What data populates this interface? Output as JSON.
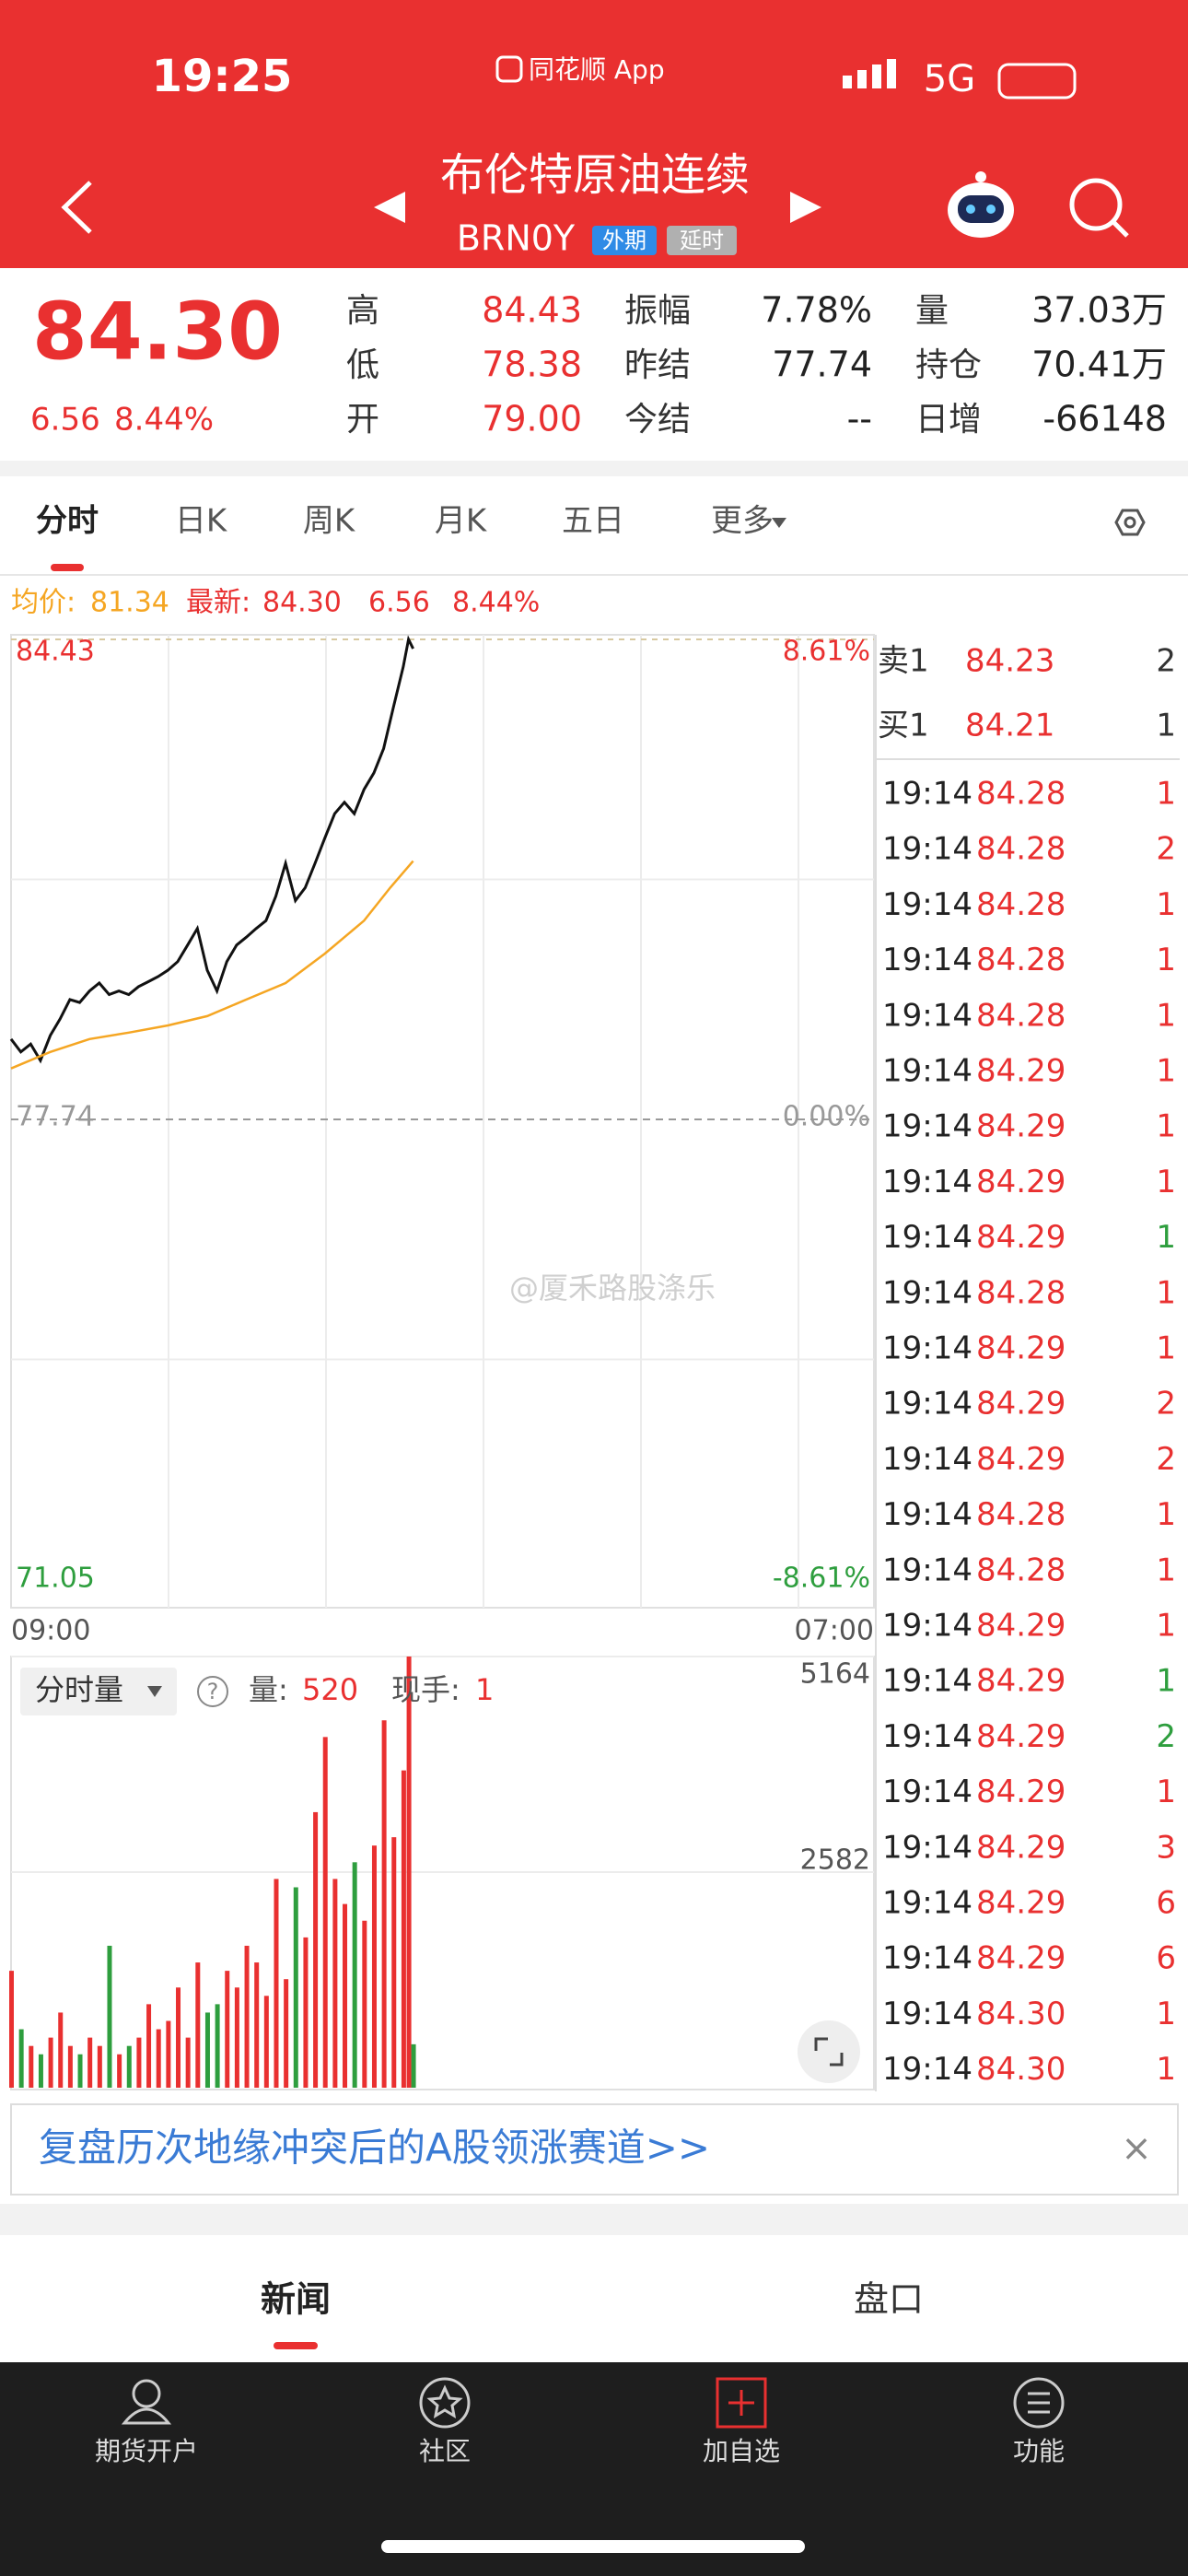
{
  "status_bar": {
    "time": "19:25",
    "app": "同花顺 App",
    "network": "5G"
  },
  "header": {
    "title": "布伦特原油连续",
    "code": "BRN0Y",
    "tags": [
      "外期",
      "延时"
    ]
  },
  "quote": {
    "price": "84.30",
    "change": "6.56",
    "change_pct": "8.44%",
    "stats": [
      {
        "label": "高",
        "value": "84.43"
      },
      {
        "label": "低",
        "value": "78.38"
      },
      {
        "label": "开",
        "value": "79.00"
      },
      {
        "label": "振幅",
        "value": "7.78%"
      },
      {
        "label": "昨结",
        "value": "77.74"
      },
      {
        "label": "今结",
        "value": "--"
      },
      {
        "label": "量",
        "value": "37.03万"
      },
      {
        "label": "持仓",
        "value": "70.41万"
      },
      {
        "label": "日增",
        "value": "-66148"
      }
    ]
  },
  "tabs": [
    "分时",
    "日K",
    "周K",
    "月K",
    "五日",
    "更多"
  ],
  "info_line": {
    "avg_label": "均价:",
    "avg": "81.34",
    "last_label": "最新:",
    "last": "84.30",
    "change": "6.56",
    "change_pct": "8.44%"
  },
  "chart_data": [
    {
      "type": "line",
      "x": [
        0,
        15,
        30,
        45,
        60,
        75,
        90,
        105,
        120,
        135,
        150,
        165,
        180,
        195,
        210,
        225,
        240,
        255,
        270,
        285,
        300,
        315,
        330,
        345,
        360,
        375,
        390,
        405,
        420,
        435,
        450,
        465,
        480,
        495,
        510,
        525,
        540,
        555,
        570,
        585,
        600,
        608,
        615
      ],
      "series": [
        {
          "color": "#111111",
          "values": [
            78.86,
            78.68,
            78.79,
            78.56,
            78.91,
            79.14,
            79.41,
            79.37,
            79.53,
            79.64,
            79.48,
            79.53,
            79.48,
            79.59,
            79.66,
            79.73,
            79.82,
            79.94,
            80.17,
            80.4,
            79.82,
            79.53,
            79.94,
            80.17,
            80.28,
            80.4,
            80.51,
            80.85,
            81.31,
            80.79,
            80.97,
            81.31,
            81.66,
            82.0,
            82.16,
            82.0,
            82.34,
            82.57,
            82.91,
            83.49,
            84.05,
            84.43,
            84.3
          ]
        },
        {
          "color": "#f5a623",
          "x": [
            0,
            60,
            120,
            180,
            240,
            300,
            360,
            420,
            480,
            540,
            580,
            615
          ],
          "values": [
            78.45,
            78.68,
            78.86,
            78.95,
            79.05,
            79.18,
            79.41,
            79.64,
            80.05,
            80.51,
            80.97,
            81.34
          ]
        }
      ],
      "xlim": [
        0,
        1320
      ],
      "xticks": [
        {
          "value": 0,
          "label": "09:00"
        },
        {
          "value": 1320,
          "label": "07:00"
        }
      ],
      "ylim": [
        71.05,
        84.43
      ],
      "yticks": [
        84.43,
        77.74,
        71.05
      ],
      "y2lim": [
        -8.61,
        8.61
      ],
      "y2ticks": [
        {
          "value": 8.61,
          "label": "8.61%"
        },
        {
          "value": 0,
          "label": "0.00%"
        },
        {
          "value": -8.61,
          "label": "-8.61%"
        }
      ],
      "watermark": "@厦禾路股涤乐"
    },
    {
      "type": "bar",
      "x": [
        0,
        15,
        30,
        45,
        60,
        75,
        90,
        105,
        120,
        135,
        150,
        165,
        180,
        195,
        210,
        225,
        240,
        255,
        270,
        285,
        300,
        315,
        330,
        345,
        360,
        375,
        390,
        405,
        420,
        435,
        450,
        465,
        480,
        495,
        510,
        525,
        540,
        555,
        570,
        585,
        600,
        608,
        615
      ],
      "values": [
        1400,
        700,
        500,
        400,
        600,
        900,
        500,
        400,
        600,
        500,
        1700,
        400,
        500,
        600,
        1000,
        700,
        800,
        1200,
        600,
        1500,
        900,
        1000,
        1400,
        1200,
        1700,
        1500,
        1100,
        2500,
        1300,
        2400,
        1800,
        3300,
        4200,
        2500,
        2200,
        2700,
        2000,
        2900,
        4400,
        3000,
        3800,
        5164,
        520
      ],
      "up_color": "#e93030",
      "down_color": "#2e9e3e",
      "xlim": [
        0,
        1320
      ],
      "ylim": [
        0,
        5164
      ],
      "yticks": [
        5164,
        2582
      ]
    }
  ],
  "volume_header": {
    "selector": "分时量",
    "help": "?",
    "vol_label": "量:",
    "vol": "520",
    "hand_label": "现手:",
    "hand": "1"
  },
  "order_book": [
    {
      "side": "卖1",
      "price": "84.23",
      "vol": "2"
    },
    {
      "side": "买1",
      "price": "84.21",
      "vol": "1"
    }
  ],
  "trades": [
    {
      "time": "19:14",
      "price": "84.28",
      "vol": "1",
      "color": "#e93030"
    },
    {
      "time": "19:14",
      "price": "84.28",
      "vol": "2",
      "color": "#e93030"
    },
    {
      "time": "19:14",
      "price": "84.28",
      "vol": "1",
      "color": "#e93030"
    },
    {
      "time": "19:14",
      "price": "84.28",
      "vol": "1",
      "color": "#e93030"
    },
    {
      "time": "19:14",
      "price": "84.28",
      "vol": "1",
      "color": "#e93030"
    },
    {
      "time": "19:14",
      "price": "84.29",
      "vol": "1",
      "color": "#e93030"
    },
    {
      "time": "19:14",
      "price": "84.29",
      "vol": "1",
      "color": "#e93030"
    },
    {
      "time": "19:14",
      "price": "84.29",
      "vol": "1",
      "color": "#e93030"
    },
    {
      "time": "19:14",
      "price": "84.29",
      "vol": "1",
      "color": "#2e9e3e"
    },
    {
      "time": "19:14",
      "price": "84.28",
      "vol": "1",
      "color": "#e93030"
    },
    {
      "time": "19:14",
      "price": "84.29",
      "vol": "1",
      "color": "#e93030"
    },
    {
      "time": "19:14",
      "price": "84.29",
      "vol": "2",
      "color": "#e93030"
    },
    {
      "time": "19:14",
      "price": "84.29",
      "vol": "2",
      "color": "#e93030"
    },
    {
      "time": "19:14",
      "price": "84.28",
      "vol": "1",
      "color": "#e93030"
    },
    {
      "time": "19:14",
      "price": "84.28",
      "vol": "1",
      "color": "#e93030"
    },
    {
      "time": "19:14",
      "price": "84.29",
      "vol": "1",
      "color": "#e93030"
    },
    {
      "time": "19:14",
      "price": "84.29",
      "vol": "1",
      "color": "#2e9e3e"
    },
    {
      "time": "19:14",
      "price": "84.29",
      "vol": "2",
      "color": "#2e9e3e"
    },
    {
      "time": "19:14",
      "price": "84.29",
      "vol": "1",
      "color": "#e93030"
    },
    {
      "time": "19:14",
      "price": "84.29",
      "vol": "3",
      "color": "#e93030"
    },
    {
      "time": "19:14",
      "price": "84.29",
      "vol": "6",
      "color": "#e93030"
    },
    {
      "time": "19:14",
      "price": "84.29",
      "vol": "6",
      "color": "#e93030"
    },
    {
      "time": "19:14",
      "price": "84.30",
      "vol": "1",
      "color": "#e93030"
    },
    {
      "time": "19:14",
      "price": "84.30",
      "vol": "1",
      "color": "#e93030"
    }
  ],
  "banner": {
    "text": "复盘历次地缘冲突后的A股领涨赛道>>",
    "close": "×"
  },
  "bottom_tabs": [
    "新闻",
    "盘口"
  ],
  "nav": [
    "期货开户",
    "社区",
    "加自选",
    "功能"
  ]
}
